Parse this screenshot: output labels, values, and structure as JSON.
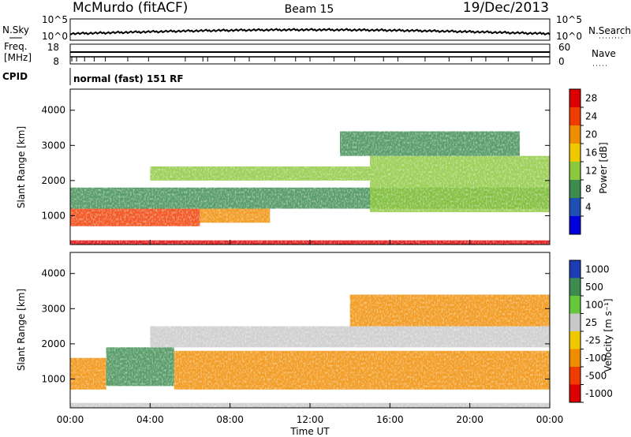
{
  "header": {
    "station": "McMurdo (fitACF)",
    "beam": "Beam 15",
    "date": "19/Dec/2013",
    "mode": "normal (fast) 151 RF"
  },
  "noise_panel": {
    "left_label": "N.Sky",
    "left_ticks": [
      "10^5",
      "10^0"
    ],
    "right_label": "N.Search",
    "right_ticks": [
      "10^5",
      "10^0"
    ]
  },
  "freq_panel": {
    "left_label_1": "Freq.",
    "left_label_2": "[MHz]",
    "left_ticks": [
      "18",
      "8"
    ],
    "right_label": "Nave",
    "right_ticks": [
      "60",
      "0"
    ]
  },
  "cpid_label": "CPID",
  "power_panel": {
    "ylabel": "Slant Range [km]",
    "yticks": [
      "4000",
      "3000",
      "2000",
      "1000"
    ],
    "cbar_label": "Power [dB]",
    "cbar_ticks": [
      "28",
      "24",
      "20",
      "16",
      "12",
      "8",
      "4"
    ]
  },
  "velocity_panel": {
    "ylabel": "Slant Range [km]",
    "yticks": [
      "4000",
      "3000",
      "2000",
      "1000"
    ],
    "cbar_label": "Velocity [m s⁻¹]",
    "cbar_ticks": [
      "1000",
      "500",
      "100",
      "25",
      "-25",
      "-100",
      "-500",
      "-1000"
    ]
  },
  "xaxis": {
    "label": "Time UT",
    "ticks": [
      "00:00",
      "04:00",
      "08:00",
      "12:00",
      "16:00",
      "20:00",
      "00:00"
    ]
  },
  "chart_data": [
    {
      "type": "heatmap",
      "title": "Power [dB]",
      "ylabel": "Slant Range [km]",
      "xlabel": "Time UT",
      "x_range": [
        "00:00",
        "24:00"
      ],
      "ylim": [
        180,
        4600
      ],
      "color_levels": [
        {
          "value": 28,
          "color": "#dd0000"
        },
        {
          "value": 24,
          "color": "#f03c00"
        },
        {
          "value": 20,
          "color": "#f08c00"
        },
        {
          "value": 16,
          "color": "#f0c800"
        },
        {
          "value": 12,
          "color": "#8cc83c"
        },
        {
          "value": 8,
          "color": "#3c8c50"
        },
        {
          "value": 4,
          "color": "#1e50b4"
        },
        {
          "value": 0,
          "color": "#0000dc"
        }
      ],
      "bands": [
        {
          "time_start": 0,
          "time_end": 24,
          "range_start": 180,
          "range_end": 300,
          "level": 28
        },
        {
          "time_start": 0,
          "time_end": 6.5,
          "range_start": 700,
          "range_end": 1200,
          "level": 24
        },
        {
          "time_start": 6.5,
          "time_end": 10,
          "range_start": 800,
          "range_end": 1200,
          "level": 20
        },
        {
          "time_start": 0,
          "time_end": 24,
          "range_start": 1200,
          "range_end": 1800,
          "level": 8
        },
        {
          "time_start": 4,
          "time_end": 15,
          "range_start": 2000,
          "range_end": 2400,
          "level": 12
        },
        {
          "time_start": 15,
          "time_end": 24,
          "range_start": 1100,
          "range_end": 2700,
          "level": 12
        },
        {
          "time_start": 13.5,
          "time_end": 22.5,
          "range_start": 2700,
          "range_end": 3400,
          "level": 8
        }
      ]
    },
    {
      "type": "heatmap",
      "title": "Velocity [m s⁻¹]",
      "ylabel": "Slant Range [km]",
      "xlabel": "Time UT",
      "x_range": [
        "00:00",
        "24:00"
      ],
      "ylim": [
        180,
        4600
      ],
      "color_levels": [
        {
          "value": 1000,
          "color": "#1e3cb4"
        },
        {
          "value": 500,
          "color": "#3c8c50"
        },
        {
          "value": 100,
          "color": "#64c83c"
        },
        {
          "value": 25,
          "color": "#c8c8c8"
        },
        {
          "value": -25,
          "color": "#f0c800"
        },
        {
          "value": -100,
          "color": "#f08c00"
        },
        {
          "value": -500,
          "color": "#f03c00"
        },
        {
          "value": -1000,
          "color": "#dd0000"
        }
      ],
      "bands": [
        {
          "time_start": 0,
          "time_end": 24,
          "range_start": 180,
          "range_end": 320,
          "level": 25
        },
        {
          "time_start": 0,
          "time_end": 1.8,
          "range_start": 700,
          "range_end": 1600,
          "level": -100
        },
        {
          "time_start": 1.8,
          "time_end": 5.2,
          "range_start": 800,
          "range_end": 1900,
          "level": 500
        },
        {
          "time_start": 5.2,
          "time_end": 24,
          "range_start": 700,
          "range_end": 1800,
          "level": -100
        },
        {
          "time_start": 4,
          "time_end": 24,
          "range_start": 1900,
          "range_end": 2500,
          "level": 25
        },
        {
          "time_start": 14,
          "time_end": 24,
          "range_start": 2500,
          "range_end": 3400,
          "level": -100
        }
      ]
    }
  ]
}
